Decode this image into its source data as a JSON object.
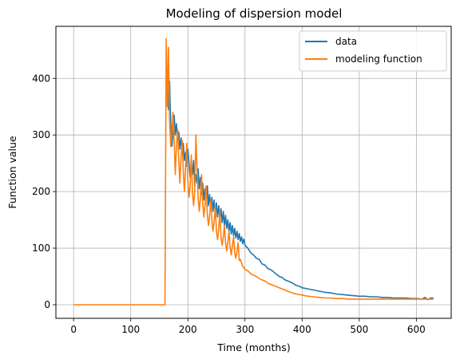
{
  "chart_data": {
    "type": "line",
    "title": "Modeling of dispersion model",
    "xlabel": "Time (months)",
    "ylabel": "Function value",
    "xlim": [
      -31,
      661
    ],
    "ylim": [
      -24,
      492
    ],
    "xticks": [
      0,
      100,
      200,
      300,
      400,
      500,
      600
    ],
    "yticks": [
      0,
      100,
      200,
      300,
      400
    ],
    "grid": true,
    "legend_position": "top-right",
    "series": [
      {
        "name": "data",
        "color": "#1f77b4",
        "x": [
          162,
          164,
          166,
          168,
          170,
          172,
          174,
          176,
          178,
          180,
          182,
          184,
          186,
          188,
          190,
          192,
          194,
          196,
          198,
          200,
          202,
          204,
          206,
          208,
          210,
          212,
          214,
          216,
          218,
          220,
          222,
          224,
          226,
          228,
          230,
          232,
          234,
          236,
          238,
          240,
          242,
          244,
          246,
          248,
          250,
          252,
          254,
          256,
          258,
          260,
          262,
          264,
          266,
          268,
          270,
          272,
          274,
          276,
          278,
          280,
          282,
          284,
          286,
          288,
          290,
          292,
          294,
          296,
          298,
          300,
          305,
          310,
          315,
          320,
          325,
          330,
          335,
          340,
          345,
          350,
          355,
          360,
          365,
          370,
          375,
          380,
          385,
          390,
          395,
          400,
          410,
          420,
          430,
          440,
          450,
          460,
          470,
          480,
          490,
          500,
          510,
          520,
          530,
          540,
          550,
          560,
          570,
          580,
          590,
          600,
          610,
          615,
          620,
          625,
          630
        ],
        "y": [
          380,
          400,
          345,
          395,
          320,
          280,
          300,
          335,
          300,
          320,
          290,
          305,
          275,
          295,
          270,
          285,
          255,
          270,
          245,
          275,
          250,
          225,
          250,
          230,
          255,
          210,
          230,
          215,
          240,
          205,
          225,
          195,
          215,
          185,
          205,
          190,
          210,
          175,
          195,
          170,
          190,
          165,
          185,
          160,
          180,
          155,
          175,
          150,
          170,
          145,
          165,
          140,
          158,
          135,
          150,
          130,
          145,
          125,
          140,
          122,
          135,
          118,
          130,
          115,
          126,
          112,
          120,
          108,
          116,
          105,
          100,
          92,
          88,
          82,
          80,
          72,
          70,
          64,
          62,
          58,
          54,
          50,
          48,
          44,
          42,
          40,
          37,
          34,
          33,
          30,
          28,
          26,
          24,
          22,
          21,
          19,
          18,
          17,
          16,
          15,
          15,
          14,
          14,
          13,
          13,
          12,
          12,
          12,
          11,
          11,
          10,
          13,
          9,
          12,
          12
        ]
      },
      {
        "name": "modeling function",
        "color": "#ff7f0e",
        "x": [
          0,
          50,
          100,
          150,
          159,
          160,
          162,
          164,
          166,
          168,
          170,
          172,
          174,
          176,
          178,
          180,
          182,
          184,
          186,
          188,
          190,
          192,
          194,
          196,
          198,
          200,
          202,
          204,
          206,
          208,
          210,
          212,
          214,
          216,
          218,
          220,
          222,
          224,
          226,
          228,
          230,
          232,
          234,
          236,
          238,
          240,
          242,
          244,
          246,
          248,
          250,
          252,
          254,
          256,
          258,
          260,
          262,
          264,
          266,
          268,
          270,
          272,
          274,
          276,
          278,
          280,
          282,
          284,
          286,
          288,
          290,
          292,
          294,
          296,
          298,
          300,
          305,
          310,
          315,
          320,
          325,
          330,
          335,
          340,
          345,
          350,
          355,
          360,
          365,
          370,
          375,
          380,
          385,
          390,
          395,
          400,
          410,
          420,
          430,
          440,
          450,
          460,
          470,
          480,
          490,
          500,
          510,
          520,
          530,
          540,
          550,
          560,
          570,
          580,
          590,
          600,
          610,
          620,
          630
        ],
        "y": [
          0,
          0,
          0,
          0,
          0,
          0,
          470,
          350,
          455,
          330,
          280,
          300,
          340,
          290,
          230,
          280,
          310,
          260,
          215,
          260,
          290,
          235,
          200,
          245,
          285,
          220,
          190,
          210,
          265,
          200,
          175,
          200,
          300,
          240,
          190,
          165,
          190,
          230,
          180,
          155,
          175,
          210,
          160,
          140,
          155,
          185,
          150,
          130,
          145,
          175,
          130,
          115,
          135,
          165,
          120,
          105,
          120,
          140,
          110,
          95,
          110,
          130,
          100,
          88,
          105,
          120,
          92,
          82,
          95,
          110,
          78,
          80,
          74,
          68,
          66,
          62,
          60,
          55,
          52,
          50,
          46,
          44,
          42,
          38,
          36,
          34,
          32,
          30,
          28,
          26,
          24,
          22,
          20,
          19,
          18,
          17,
          15,
          14,
          13,
          12,
          12,
          11,
          11,
          10,
          10,
          10,
          10,
          10,
          10,
          10,
          10,
          10,
          10,
          10,
          10,
          10,
          10,
          10,
          10
        ]
      }
    ]
  }
}
